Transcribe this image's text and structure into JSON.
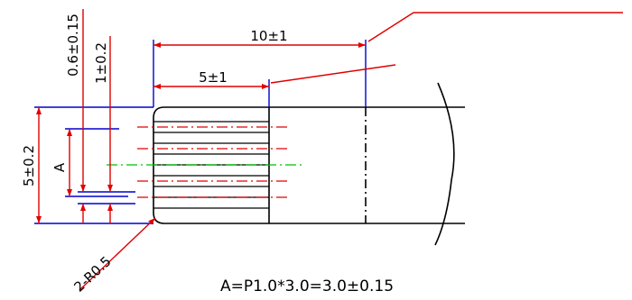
{
  "labels": {
    "dim_10": "10±1",
    "dim_5": "5±1",
    "dim_06": "0.6±0.15",
    "dim_1": "1±0.2",
    "dim_height": "5±0.2",
    "dim_a": "A",
    "dim_radius": "2-R0.5",
    "formula": "A=P1.0*3.0=3.0±0.15"
  },
  "colors": {
    "outline": "#000000",
    "dimension": "#e00000",
    "extension": "#0000d0",
    "centerline": "#00c000"
  }
}
